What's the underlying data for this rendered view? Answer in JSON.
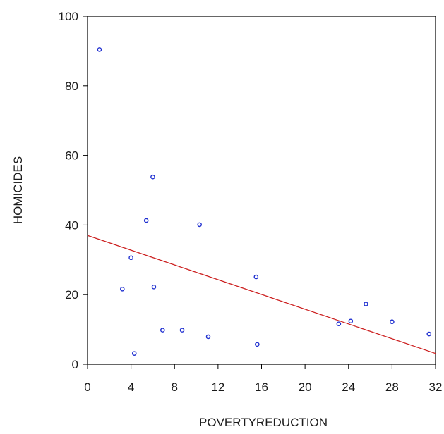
{
  "chart_data": {
    "type": "scatter",
    "xlabel": "POVERTYREDUCTION",
    "ylabel": "HOMICIDES",
    "xlim": [
      0,
      32
    ],
    "ylim": [
      0,
      100
    ],
    "xticks": [
      0,
      4,
      8,
      12,
      16,
      20,
      24,
      28,
      32
    ],
    "yticks": [
      0,
      20,
      40,
      60,
      80,
      100
    ],
    "grid": false,
    "series": [
      {
        "values": [
          {
            "x": 1.1,
            "y": 90.4
          },
          {
            "x": 3.2,
            "y": 21.6
          },
          {
            "x": 4.0,
            "y": 30.6
          },
          {
            "x": 4.3,
            "y": 3.1
          },
          {
            "x": 5.4,
            "y": 41.3
          },
          {
            "x": 6.0,
            "y": 53.8
          },
          {
            "x": 6.1,
            "y": 22.2
          },
          {
            "x": 6.9,
            "y": 9.8
          },
          {
            "x": 8.7,
            "y": 9.8
          },
          {
            "x": 10.3,
            "y": 40.1
          },
          {
            "x": 11.1,
            "y": 7.9
          },
          {
            "x": 15.5,
            "y": 25.1
          },
          {
            "x": 15.6,
            "y": 5.7
          },
          {
            "x": 23.1,
            "y": 11.6
          },
          {
            "x": 24.2,
            "y": 12.4
          },
          {
            "x": 25.6,
            "y": 17.3
          },
          {
            "x": 28.0,
            "y": 12.2
          },
          {
            "x": 31.4,
            "y": 8.7
          }
        ]
      }
    ],
    "fit_line": {
      "x": [
        0,
        32
      ],
      "y": [
        37.0,
        3.1
      ]
    },
    "colors": {
      "points": "#1f2fd0",
      "fit_line": "#cc1f1f",
      "axes": "#000000"
    }
  }
}
